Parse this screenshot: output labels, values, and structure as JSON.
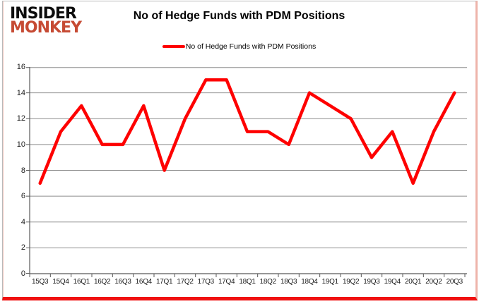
{
  "branding": {
    "logo_line1": "INSIDER",
    "logo_line2": "MONKEY",
    "logo_color": "#c64a33"
  },
  "header": {
    "title": "No of Hedge Funds with PDM Positions"
  },
  "legend": {
    "label": "No of Hedge Funds with PDM Positions",
    "line_color": "#fe0000"
  },
  "chart_data": {
    "type": "line",
    "title": "No of Hedge Funds with PDM Positions",
    "categories": [
      "15Q3",
      "15Q4",
      "16Q1",
      "16Q2",
      "16Q3",
      "16Q4",
      "17Q1",
      "17Q2",
      "17Q3",
      "17Q4",
      "18Q1",
      "18Q2",
      "18Q3",
      "18Q4",
      "19Q1",
      "19Q2",
      "19Q3",
      "19Q4",
      "20Q1",
      "20Q2",
      "20Q3"
    ],
    "series": [
      {
        "name": "No of Hedge Funds with PDM Positions",
        "color": "#fe0000",
        "values": [
          7,
          11,
          13,
          10,
          10,
          13,
          8,
          12,
          15,
          15,
          11,
          11,
          10,
          14,
          13,
          12,
          9,
          11,
          7,
          11,
          14
        ]
      }
    ],
    "xlabel": "",
    "ylabel": "",
    "ylim": [
      0,
      16
    ],
    "ytick_step": 2,
    "grid": true,
    "grid_color": "#8e8e8e",
    "axis_color": "#595959",
    "legend_position": "top"
  }
}
